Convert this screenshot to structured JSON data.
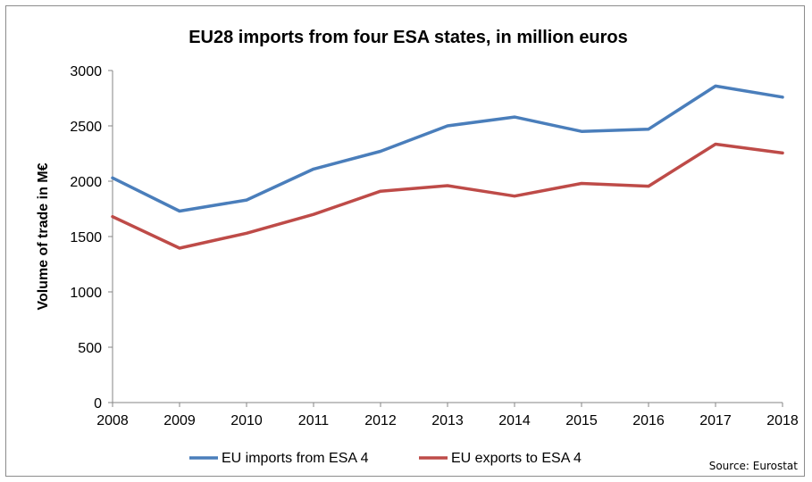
{
  "chart_data": {
    "type": "line",
    "title": "EU28 imports from four ESA states, in million euros",
    "xlabel": "",
    "ylabel": "Volume of trade in M€",
    "x": [
      "2008",
      "2009",
      "2010",
      "2011",
      "2012",
      "2013",
      "2014",
      "2015",
      "2016",
      "2017",
      "2018"
    ],
    "ylim": [
      0,
      3000
    ],
    "yticks": [
      "0",
      "500",
      "1000",
      "1500",
      "2000",
      "2500",
      "3000"
    ],
    "grid": false,
    "legend": "bottom",
    "series": [
      {
        "name": "EU imports from ESA 4",
        "color": "#4a7ebb",
        "values": [
          2030,
          1730,
          1830,
          2110,
          2270,
          2500,
          2580,
          2450,
          2470,
          2860,
          2760
        ]
      },
      {
        "name": "EU exports to ESA 4",
        "color": "#be4b48",
        "values": [
          1680,
          1395,
          1530,
          1700,
          1910,
          1960,
          1865,
          1980,
          1955,
          2335,
          2255
        ]
      }
    ],
    "source": "Source: Eurostat"
  }
}
